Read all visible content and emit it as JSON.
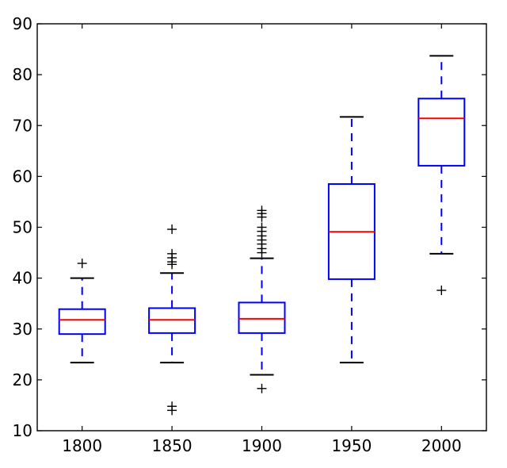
{
  "chart_data": {
    "type": "boxplot",
    "title": "",
    "xlabel": "",
    "ylabel": "",
    "categories": [
      "1800",
      "1850",
      "1900",
      "1950",
      "2000"
    ],
    "ylim": [
      10,
      90
    ],
    "yticks": [
      10,
      20,
      30,
      40,
      50,
      60,
      70,
      80,
      90
    ],
    "grid": false,
    "boxes": [
      {
        "label": "1800",
        "whisker_low": 23.4,
        "q1": 29.0,
        "median": 31.8,
        "q3": 33.9,
        "whisker_high": 40.0,
        "outliers": [
          42.9
        ]
      },
      {
        "label": "1850",
        "whisker_low": 23.4,
        "q1": 29.2,
        "median": 31.8,
        "q3": 34.1,
        "whisker_high": 41.0,
        "outliers": [
          14.0,
          14.8,
          42.7,
          43.2,
          44.0,
          44.8,
          49.6
        ]
      },
      {
        "label": "1900",
        "whisker_low": 21.0,
        "q1": 29.2,
        "median": 32.0,
        "q3": 35.2,
        "whisker_high": 43.9,
        "outliers": [
          18.3,
          45.0,
          45.8,
          46.7,
          47.5,
          48.3,
          49.2,
          50.0,
          52.0,
          52.7,
          53.3
        ]
      },
      {
        "label": "1950",
        "whisker_low": 23.4,
        "q1": 39.8,
        "median": 49.1,
        "q3": 58.5,
        "whisker_high": 71.7,
        "outliers": []
      },
      {
        "label": "2000",
        "whisker_low": 44.8,
        "q1": 62.1,
        "median": 71.4,
        "q3": 75.3,
        "whisker_high": 83.7,
        "outliers": [
          37.6
        ]
      }
    ],
    "colors": {
      "box": "#0000ff",
      "median": "#ff0000",
      "whisker": "#0000ff",
      "cap": "#000000",
      "outlier": "#000000",
      "axes": "#000000"
    }
  }
}
